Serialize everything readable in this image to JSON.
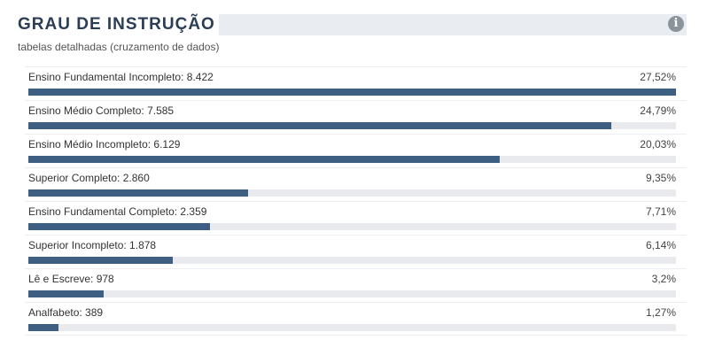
{
  "header": {
    "title": "GRAU DE INSTRUÇÃO",
    "subtitle": "tabelas detalhadas (cruzamento de dados)",
    "info_icon": "info-circle-icon"
  },
  "colors": {
    "bar": "#3e5f82",
    "track": "#e8eaed",
    "title": "#2b3e56"
  },
  "chart_data": {
    "type": "bar",
    "orientation": "horizontal",
    "title": "GRAU DE INSTRUÇÃO",
    "categories": [
      "Ensino Fundamental Incompleto",
      "Ensino Médio Completo",
      "Ensino Médio Incompleto",
      "Superior Completo",
      "Ensino Fundamental Completo",
      "Superior Incompleto",
      "Lê e Escreve",
      "Analfabeto"
    ],
    "counts": [
      "8.422",
      "7.585",
      "6.129",
      "2.860",
      "2.359",
      "1.878",
      "978",
      "389"
    ],
    "percent_labels": [
      "27,52%",
      "24,79%",
      "20,03%",
      "9,35%",
      "7,71%",
      "6,14%",
      "3,2%",
      "1,27%"
    ],
    "values": [
      27.52,
      24.79,
      20.03,
      9.35,
      7.71,
      6.14,
      3.2,
      1.27
    ]
  }
}
